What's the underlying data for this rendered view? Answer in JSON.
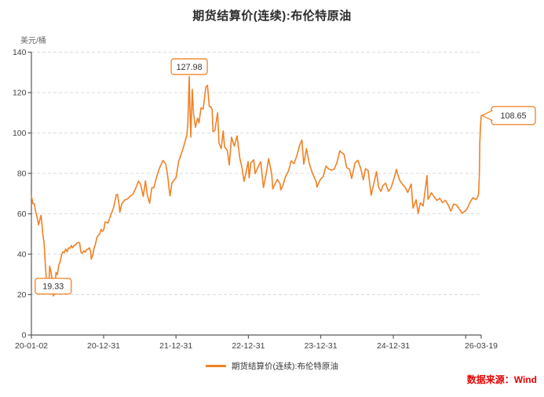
{
  "title": "期货结算价(连续):布伦特原油",
  "unit_label": "美元/桶",
  "legend": {
    "series_label": "期货结算价(连续):布伦特原油"
  },
  "source_label": "数据来源：Wind",
  "colors": {
    "line": "#F28124",
    "annotation_border": "#F28124",
    "annotation_text": "#333333",
    "source_text": "#E60000",
    "grid": "#DBDBDB",
    "axis": "#595959",
    "tick_text": "#404040"
  },
  "chart_data": {
    "type": "line",
    "title": "期货结算价(连续):布伦特原油",
    "ylabel": "美元/桶",
    "ylim": [
      0,
      140
    ],
    "y_ticks": [
      0,
      20,
      40,
      60,
      80,
      100,
      120,
      140
    ],
    "x_range": [
      "2020-01-02",
      "2026-03-19"
    ],
    "x_ticks": [
      {
        "date": "2020-01-02",
        "label": "20-01-02"
      },
      {
        "date": "2020-12-31",
        "label": "20-12-31"
      },
      {
        "date": "2021-12-31",
        "label": "21-12-31"
      },
      {
        "date": "2022-12-31",
        "label": "22-12-31"
      },
      {
        "date": "2023-12-31",
        "label": "23-12-31"
      },
      {
        "date": "2024-12-31",
        "label": "24-12-31"
      },
      {
        "date": "2025-12-31",
        "label": ""
      },
      {
        "date": "2026-03-19",
        "label": "26-03-19"
      }
    ],
    "grid": "horizontal-dashed",
    "legend_position": "bottom-center",
    "annotations": [
      {
        "label": "127.98",
        "date": "2022-03-08",
        "value": 127.98,
        "placement": "above"
      },
      {
        "label": "19.33",
        "date": "2020-04-21",
        "value": 19.33,
        "placement": "above"
      },
      {
        "label": "108.65",
        "date": "2026-03-19",
        "value": 108.65,
        "placement": "right"
      }
    ],
    "series": [
      {
        "name": "期货结算价(连续):布伦特原油",
        "color": "#F28124",
        "points": [
          [
            "2020-01-02",
            68.9
          ],
          [
            "2020-01-10",
            65.0
          ],
          [
            "2020-01-17",
            64.9
          ],
          [
            "2020-01-24",
            60.7
          ],
          [
            "2020-01-31",
            58.2
          ],
          [
            "2020-02-07",
            54.5
          ],
          [
            "2020-02-14",
            57.3
          ],
          [
            "2020-02-20",
            59.3
          ],
          [
            "2020-02-28",
            50.5
          ],
          [
            "2020-03-06",
            45.3
          ],
          [
            "2020-03-13",
            33.9
          ],
          [
            "2020-03-19",
            24.9
          ],
          [
            "2020-03-26",
            26.3
          ],
          [
            "2020-03-30",
            22.8
          ],
          [
            "2020-04-03",
            34.1
          ],
          [
            "2020-04-09",
            31.5
          ],
          [
            "2020-04-15",
            27.7
          ],
          [
            "2020-04-21",
            19.33
          ],
          [
            "2020-04-28",
            20.5
          ],
          [
            "2020-05-05",
            31.0
          ],
          [
            "2020-05-12",
            29.9
          ],
          [
            "2020-05-19",
            34.7
          ],
          [
            "2020-05-26",
            36.2
          ],
          [
            "2020-06-02",
            39.6
          ],
          [
            "2020-06-09",
            41.2
          ],
          [
            "2020-06-16",
            40.7
          ],
          [
            "2020-06-23",
            42.6
          ],
          [
            "2020-06-30",
            41.2
          ],
          [
            "2020-07-07",
            43.1
          ],
          [
            "2020-07-14",
            42.9
          ],
          [
            "2020-07-21",
            44.3
          ],
          [
            "2020-07-28",
            43.2
          ],
          [
            "2020-08-04",
            44.4
          ],
          [
            "2020-08-11",
            44.5
          ],
          [
            "2020-08-18",
            45.4
          ],
          [
            "2020-08-25",
            45.9
          ],
          [
            "2020-09-01",
            45.6
          ],
          [
            "2020-09-08",
            40.8
          ],
          [
            "2020-09-15",
            40.5
          ],
          [
            "2020-09-22",
            41.7
          ],
          [
            "2020-09-29",
            41.0
          ],
          [
            "2020-10-06",
            42.3
          ],
          [
            "2020-10-13",
            42.4
          ],
          [
            "2020-10-20",
            43.2
          ],
          [
            "2020-10-27",
            41.2
          ],
          [
            "2020-10-30",
            37.5
          ],
          [
            "2020-11-06",
            39.5
          ],
          [
            "2020-11-13",
            42.8
          ],
          [
            "2020-11-20",
            45.0
          ],
          [
            "2020-11-27",
            48.2
          ],
          [
            "2020-12-04",
            49.3
          ],
          [
            "2020-12-11",
            50.0
          ],
          [
            "2020-12-18",
            52.3
          ],
          [
            "2020-12-24",
            51.3
          ],
          [
            "2020-12-31",
            51.8
          ],
          [
            "2021-01-08",
            55.99
          ],
          [
            "2021-01-22",
            55.4
          ],
          [
            "2021-02-05",
            59.3
          ],
          [
            "2021-02-19",
            62.9
          ],
          [
            "2021-03-05",
            69.4
          ],
          [
            "2021-03-11",
            69.6
          ],
          [
            "2021-03-19",
            64.5
          ],
          [
            "2021-03-23",
            60.8
          ],
          [
            "2021-04-02",
            64.9
          ],
          [
            "2021-04-16",
            66.8
          ],
          [
            "2021-04-30",
            67.3
          ],
          [
            "2021-05-14",
            68.7
          ],
          [
            "2021-05-28",
            69.7
          ],
          [
            "2021-06-11",
            72.7
          ],
          [
            "2021-06-25",
            76.2
          ],
          [
            "2021-07-06",
            74.5
          ],
          [
            "2021-07-19",
            68.6
          ],
          [
            "2021-07-30",
            76.3
          ],
          [
            "2021-08-09",
            69.0
          ],
          [
            "2021-08-20",
            65.2
          ],
          [
            "2021-08-31",
            72.9
          ],
          [
            "2021-09-10",
            72.9
          ],
          [
            "2021-09-24",
            78.1
          ],
          [
            "2021-10-08",
            82.4
          ],
          [
            "2021-10-26",
            86.4
          ],
          [
            "2021-11-09",
            84.8
          ],
          [
            "2021-11-19",
            78.9
          ],
          [
            "2021-11-26",
            72.7
          ],
          [
            "2021-12-01",
            68.9
          ],
          [
            "2021-12-10",
            75.2
          ],
          [
            "2021-12-23",
            76.9
          ],
          [
            "2021-12-31",
            77.8
          ],
          [
            "2022-01-14",
            86.1
          ],
          [
            "2022-01-28",
            90.0
          ],
          [
            "2022-02-11",
            94.4
          ],
          [
            "2022-02-24",
            99.1
          ],
          [
            "2022-03-01",
            104.9
          ],
          [
            "2022-03-08",
            127.98
          ],
          [
            "2022-03-11",
            112.7
          ],
          [
            "2022-03-16",
            98.0
          ],
          [
            "2022-03-23",
            121.6
          ],
          [
            "2022-03-29",
            110.2
          ],
          [
            "2022-04-08",
            102.8
          ],
          [
            "2022-04-19",
            107.3
          ],
          [
            "2022-04-26",
            105.0
          ],
          [
            "2022-05-06",
            112.4
          ],
          [
            "2022-05-17",
            111.9
          ],
          [
            "2022-05-31",
            122.8
          ],
          [
            "2022-06-08",
            123.6
          ],
          [
            "2022-06-17",
            113.1
          ],
          [
            "2022-06-24",
            113.1
          ],
          [
            "2022-07-01",
            111.6
          ],
          [
            "2022-07-06",
            100.7
          ],
          [
            "2022-07-15",
            101.2
          ],
          [
            "2022-07-29",
            110.0
          ],
          [
            "2022-08-05",
            94.9
          ],
          [
            "2022-08-16",
            92.3
          ],
          [
            "2022-08-26",
            101.0
          ],
          [
            "2022-09-02",
            93.0
          ],
          [
            "2022-09-16",
            91.4
          ],
          [
            "2022-09-26",
            84.1
          ],
          [
            "2022-10-07",
            97.9
          ],
          [
            "2022-10-21",
            93.5
          ],
          [
            "2022-11-04",
            98.6
          ],
          [
            "2022-11-18",
            87.6
          ],
          [
            "2022-11-28",
            83.2
          ],
          [
            "2022-12-09",
            76.1
          ],
          [
            "2022-12-16",
            79.0
          ],
          [
            "2022-12-30",
            85.9
          ],
          [
            "2023-01-04",
            77.8
          ],
          [
            "2023-01-13",
            85.3
          ],
          [
            "2023-01-27",
            86.7
          ],
          [
            "2023-02-03",
            79.9
          ],
          [
            "2023-02-17",
            83.0
          ],
          [
            "2023-03-03",
            85.8
          ],
          [
            "2023-03-17",
            72.97
          ],
          [
            "2023-03-31",
            79.8
          ],
          [
            "2023-04-12",
            87.3
          ],
          [
            "2023-04-28",
            79.5
          ],
          [
            "2023-05-03",
            72.3
          ],
          [
            "2023-05-12",
            74.2
          ],
          [
            "2023-05-26",
            77.0
          ],
          [
            "2023-06-09",
            74.8
          ],
          [
            "2023-06-12",
            71.8
          ],
          [
            "2023-06-23",
            74.0
          ],
          [
            "2023-07-07",
            78.5
          ],
          [
            "2023-07-21",
            81.1
          ],
          [
            "2023-08-04",
            86.2
          ],
          [
            "2023-08-18",
            84.8
          ],
          [
            "2023-09-01",
            88.6
          ],
          [
            "2023-09-15",
            93.9
          ],
          [
            "2023-09-27",
            96.5
          ],
          [
            "2023-10-06",
            84.6
          ],
          [
            "2023-10-20",
            92.2
          ],
          [
            "2023-11-03",
            84.9
          ],
          [
            "2023-11-17",
            80.6
          ],
          [
            "2023-12-08",
            75.8
          ],
          [
            "2023-12-12",
            73.2
          ],
          [
            "2023-12-29",
            77.0
          ],
          [
            "2024-01-12",
            78.3
          ],
          [
            "2024-01-26",
            83.6
          ],
          [
            "2024-02-09",
            82.2
          ],
          [
            "2024-02-23",
            81.6
          ],
          [
            "2024-03-08",
            82.1
          ],
          [
            "2024-03-22",
            85.4
          ],
          [
            "2024-04-05",
            91.2
          ],
          [
            "2024-04-12",
            90.45
          ],
          [
            "2024-04-26",
            89.5
          ],
          [
            "2024-05-10",
            82.8
          ],
          [
            "2024-05-24",
            82.1
          ],
          [
            "2024-06-04",
            77.5
          ],
          [
            "2024-06-21",
            85.2
          ],
          [
            "2024-07-05",
            86.5
          ],
          [
            "2024-07-19",
            82.6
          ],
          [
            "2024-08-02",
            76.8
          ],
          [
            "2024-08-12",
            82.3
          ],
          [
            "2024-08-26",
            81.4
          ],
          [
            "2024-09-10",
            69.2
          ],
          [
            "2024-09-24",
            75.2
          ],
          [
            "2024-10-07",
            80.9
          ],
          [
            "2024-10-18",
            73.1
          ],
          [
            "2024-10-29",
            71.1
          ],
          [
            "2024-11-08",
            73.9
          ],
          [
            "2024-11-22",
            75.2
          ],
          [
            "2024-12-06",
            71.1
          ],
          [
            "2024-12-20",
            72.9
          ],
          [
            "2025-01-10",
            79.8
          ],
          [
            "2025-01-15",
            82.0
          ],
          [
            "2025-01-31",
            76.8
          ],
          [
            "2025-02-14",
            74.7
          ],
          [
            "2025-02-28",
            73.2
          ],
          [
            "2025-03-14",
            70.6
          ],
          [
            "2025-03-31",
            74.7
          ],
          [
            "2025-04-09",
            62.8
          ],
          [
            "2025-04-25",
            66.9
          ],
          [
            "2025-05-05",
            60.2
          ],
          [
            "2025-05-16",
            65.4
          ],
          [
            "2025-05-30",
            63.9
          ],
          [
            "2025-06-13",
            74.2
          ],
          [
            "2025-06-19",
            78.9
          ],
          [
            "2025-06-24",
            67.1
          ],
          [
            "2025-07-11",
            70.4
          ],
          [
            "2025-07-25",
            68.4
          ],
          [
            "2025-08-08",
            66.6
          ],
          [
            "2025-08-22",
            67.7
          ],
          [
            "2025-09-05",
            65.5
          ],
          [
            "2025-09-19",
            66.7
          ],
          [
            "2025-10-03",
            64.5
          ],
          [
            "2025-10-17",
            61.3
          ],
          [
            "2025-10-31",
            64.8
          ],
          [
            "2025-11-14",
            64.4
          ],
          [
            "2025-11-28",
            62.5
          ],
          [
            "2025-12-12",
            60.3
          ],
          [
            "2025-12-31",
            61.5
          ],
          [
            "2026-01-09",
            63.0
          ],
          [
            "2026-01-23",
            66.0
          ],
          [
            "2026-02-06",
            68.0
          ],
          [
            "2026-02-20",
            67.0
          ],
          [
            "2026-03-02",
            68.5
          ],
          [
            "2026-03-06",
            70.0
          ],
          [
            "2026-03-10",
            80.0
          ],
          [
            "2026-03-12",
            95.0
          ],
          [
            "2026-03-16",
            104.0
          ],
          [
            "2026-03-18",
            107.0
          ],
          [
            "2026-03-19",
            108.65
          ]
        ]
      }
    ]
  }
}
